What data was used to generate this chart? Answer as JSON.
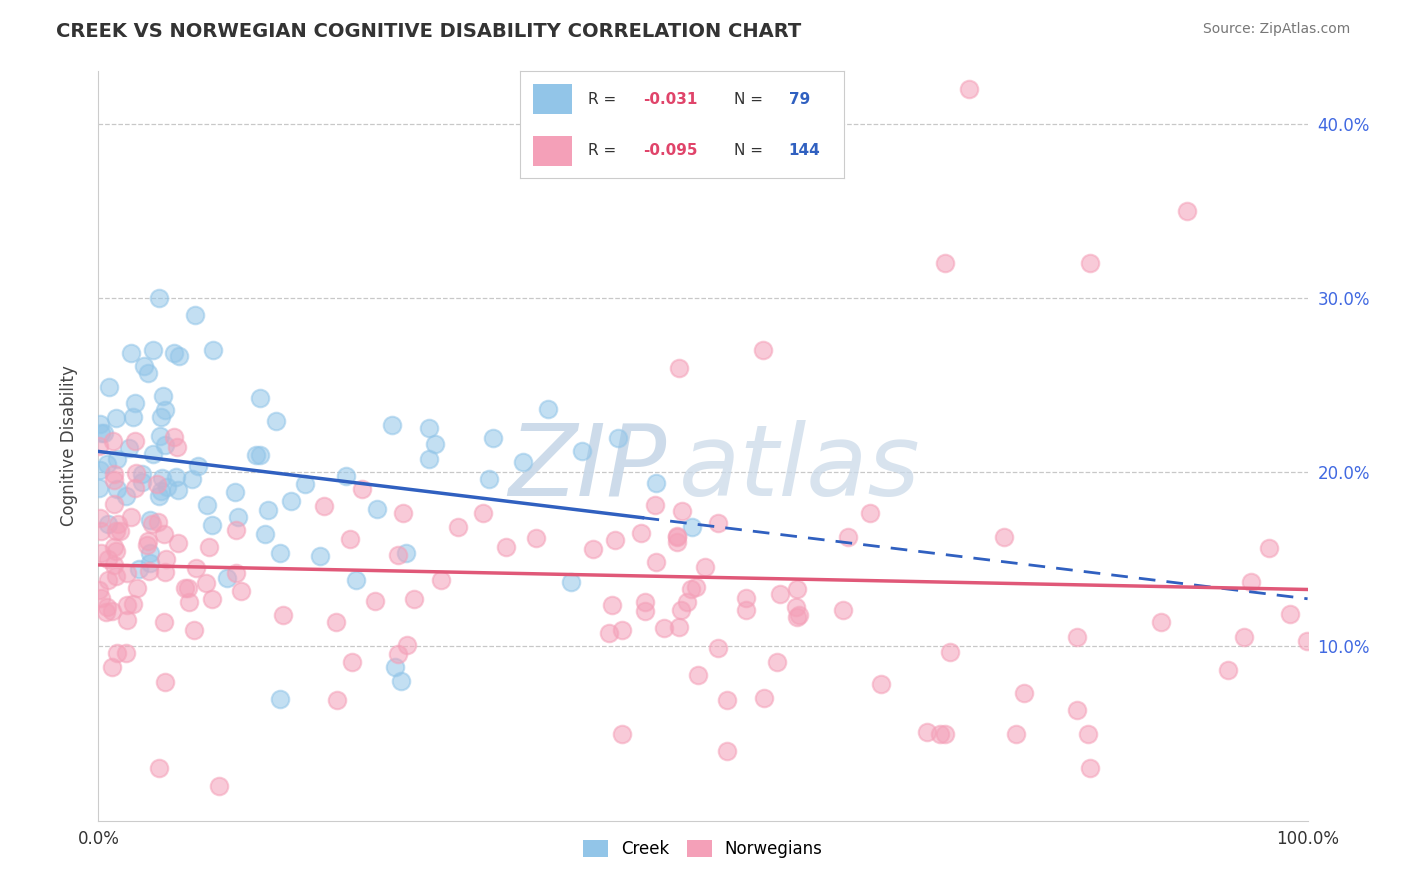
{
  "title": "CREEK VS NORWEGIAN COGNITIVE DISABILITY CORRELATION CHART",
  "source": "Source: ZipAtlas.com",
  "ylabel": "Cognitive Disability",
  "xlim": [
    0,
    100
  ],
  "ylim": [
    0,
    43
  ],
  "yticks": [
    10,
    20,
    30,
    40
  ],
  "ytick_labels": [
    "10.0%",
    "20.0%",
    "30.0%",
    "40.0%"
  ],
  "xtick_labels": [
    "0.0%",
    "100.0%"
  ],
  "creek_color": "#92C5E8",
  "norwegian_color": "#F4A0B8",
  "creek_line_color": "#3060C0",
  "norwegian_line_color": "#E05878",
  "creek_R": -0.031,
  "creek_N": 79,
  "norwegian_R": -0.095,
  "norwegian_N": 144,
  "watermark_color": "#c8d8e8",
  "background_color": "#ffffff",
  "grid_color": "#c8c8c8"
}
